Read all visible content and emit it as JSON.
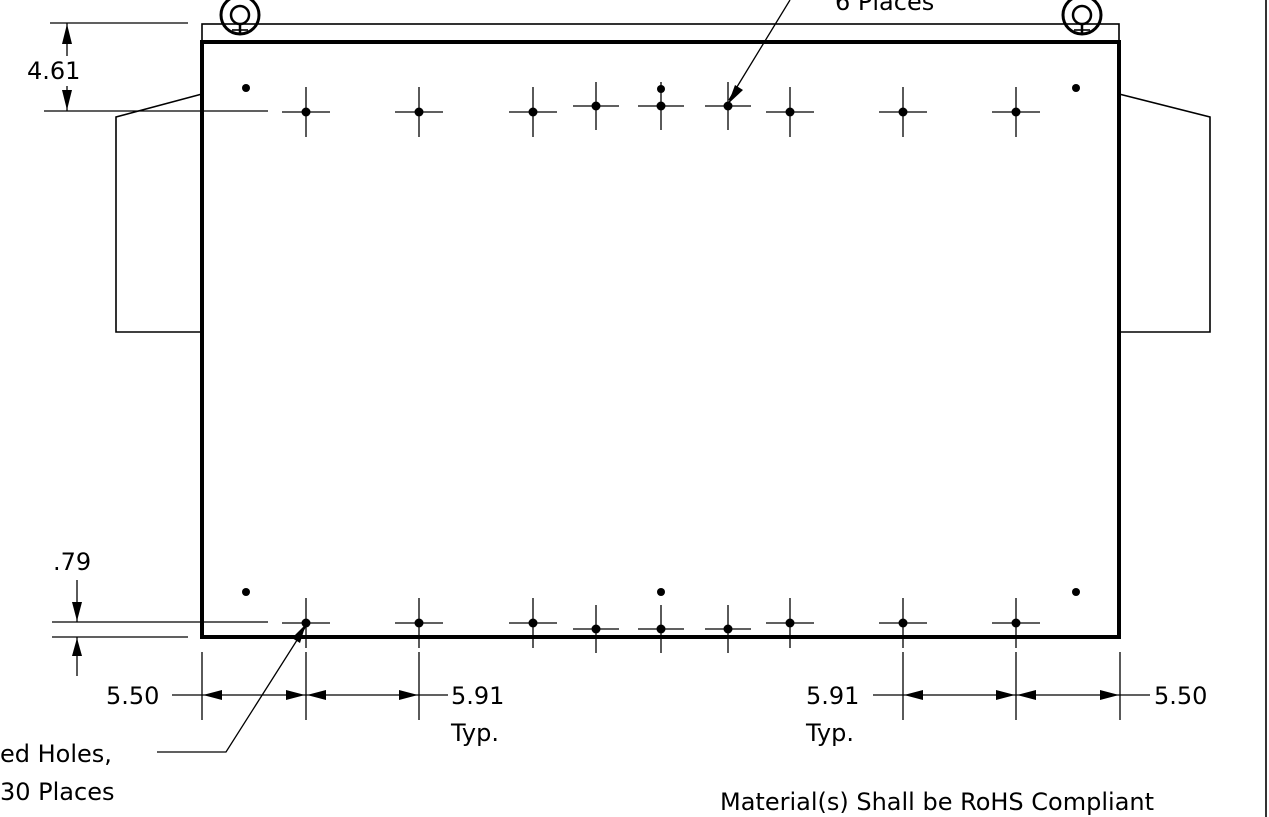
{
  "dimensions": {
    "top_offset": "4.61",
    "bottom_offset": ".79",
    "left_edge": "5.50",
    "right_edge": "5.50",
    "left_spacing": "5.91",
    "left_spacing_typ": "Typ.",
    "right_spacing": "5.91",
    "right_spacing_typ": "Typ."
  },
  "callouts": {
    "top_places": "6 Places",
    "bottom_holes_line1": "ed Holes,",
    "bottom_holes_line2": "30 Places"
  },
  "footer_note": "Material(s) Shall be RoHS Compliant",
  "hole_marks": {
    "top_row_count": 9,
    "top_small_count": 3,
    "bottom_row_count": 9,
    "bottom_small_count": 3,
    "corner_dot_count": 4,
    "center_dot_count": 2
  }
}
